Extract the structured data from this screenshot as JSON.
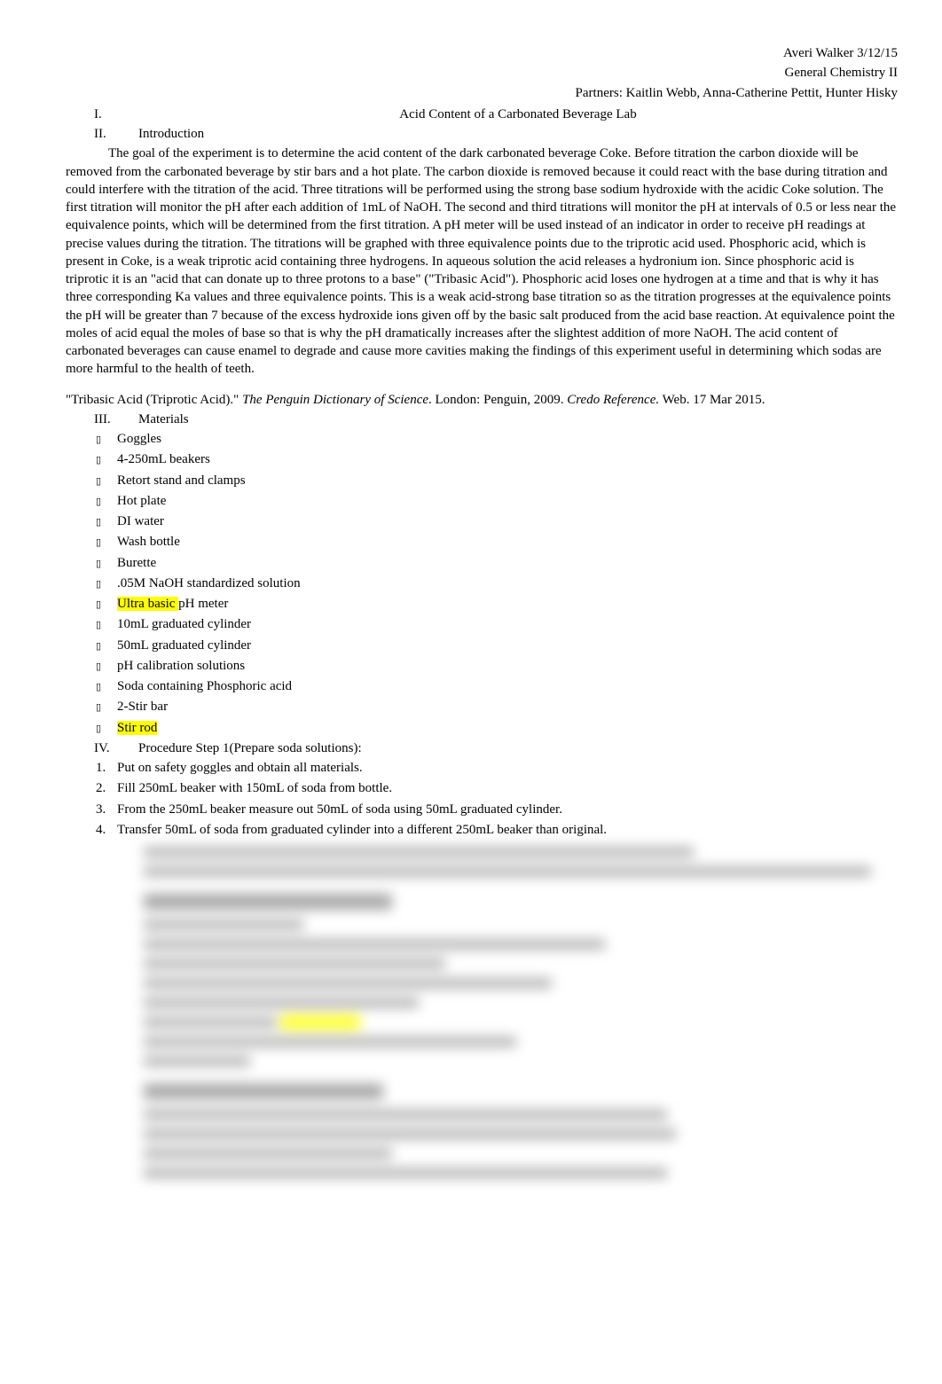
{
  "header": {
    "name_date": "Averi Walker 3/12/15",
    "course": "General Chemistry II",
    "partners": "Partners: Kaitlin Webb, Anna-Catherine Pettit, Hunter Hisky"
  },
  "sections": {
    "i_num": "I.",
    "i_title": "Acid Content of a Carbonated Beverage Lab",
    "ii_num": "II.",
    "ii_title": "Introduction",
    "intro_text": "The goal of the experiment is to determine the acid content of the dark carbonated beverage Coke. Before titration the carbon dioxide will be removed from the carbonated beverage by stir bars and a hot plate. The carbon dioxide is removed because it could react with the base during titration and could interfere with the titration of the acid. Three titrations will be performed using the strong base sodium hydroxide with the acidic Coke solution. The first titration will monitor the pH after each addition of 1mL of NaOH. The second and third titrations will monitor the pH at intervals of 0.5 or less near the equivalence points, which will be determined from the first titration. A pH meter will be used instead of an indicator in order to receive pH readings at precise values during the titration. The titrations will be graphed with three equivalence points due to the triprotic acid used. Phosphoric acid, which is present in Coke, is a weak triprotic acid containing three hydrogens. In aqueous solution the acid releases a hydronium ion. Since phosphoric acid is triprotic it is an \"acid that can donate up to three protons to a base\" (\"Tribasic Acid\"). Phosphoric acid loses one hydrogen at a time and that is why it has three corresponding Ka values and three equivalence points. This is a weak acid-strong base titration so as the titration progresses at the equivalence points the pH will be greater than 7 because of the excess hydroxide ions given off by the basic salt produced from the acid base reaction. At equivalence point the moles of acid equal the moles of base so that is why the pH dramatically increases after the slightest addition of more NaOH. The acid content of carbonated beverages can cause enamel to degrade and cause more cavities making the findings of this experiment useful in determining which sodas are more harmful to the health of teeth.",
    "citation_prefix": "\"Tribasic Acid (Triprotic Acid).\"   ",
    "citation_source1": "The Penguin Dictionary of Science",
    "citation_mid": ". London: Penguin, 2009.  ",
    "citation_source2": "Credo Reference.",
    "citation_suffix": " Web. 17 Mar 2015.",
    "iii_num": "III.",
    "iii_title": "Materials",
    "materials": [
      {
        "text": "Goggles",
        "highlight": false
      },
      {
        "text": "4-250mL beakers",
        "highlight": false
      },
      {
        "text": "Retort stand and clamps",
        "highlight": false
      },
      {
        "text": "Hot plate",
        "highlight": false
      },
      {
        "text": "DI water",
        "highlight": false
      },
      {
        "text": "Wash bottle",
        "highlight": false
      },
      {
        "text": "Burette",
        "highlight": false
      },
      {
        "text": ".05M NaOH standardized solution",
        "highlight": false
      },
      {
        "text_pre": "Ultra basic ",
        "text_post": "pH meter",
        "highlight": true
      },
      {
        "text": "10mL graduated cylinder",
        "highlight": false
      },
      {
        "text": "50mL graduated cylinder",
        "highlight": false
      },
      {
        "text": "pH calibration solutions",
        "highlight": false
      },
      {
        "text": "Soda containing Phosphoric acid",
        "highlight": false
      },
      {
        "text": "2-Stir bar",
        "highlight": false
      },
      {
        "text": "Stir rod",
        "highlight": true,
        "highlight_full": true
      }
    ],
    "iv_num": "IV.",
    "iv_title": "Procedure Step 1(Prepare soda solutions):",
    "procedure": [
      {
        "num": "1.",
        "text": "Put on safety goggles and obtain all materials."
      },
      {
        "num": "2.",
        "text": "Fill 250mL beaker with 150mL of soda from bottle."
      },
      {
        "num": "3.",
        "text": "From the 250mL beaker measure out 50mL of soda using 50mL graduated cylinder."
      },
      {
        "num": "4.",
        "text": "Transfer 50mL of soda from graduated cylinder into a different 250mL beaker than original."
      }
    ]
  },
  "colors": {
    "highlight": "#ffff00",
    "text": "#000000",
    "background": "#ffffff"
  }
}
